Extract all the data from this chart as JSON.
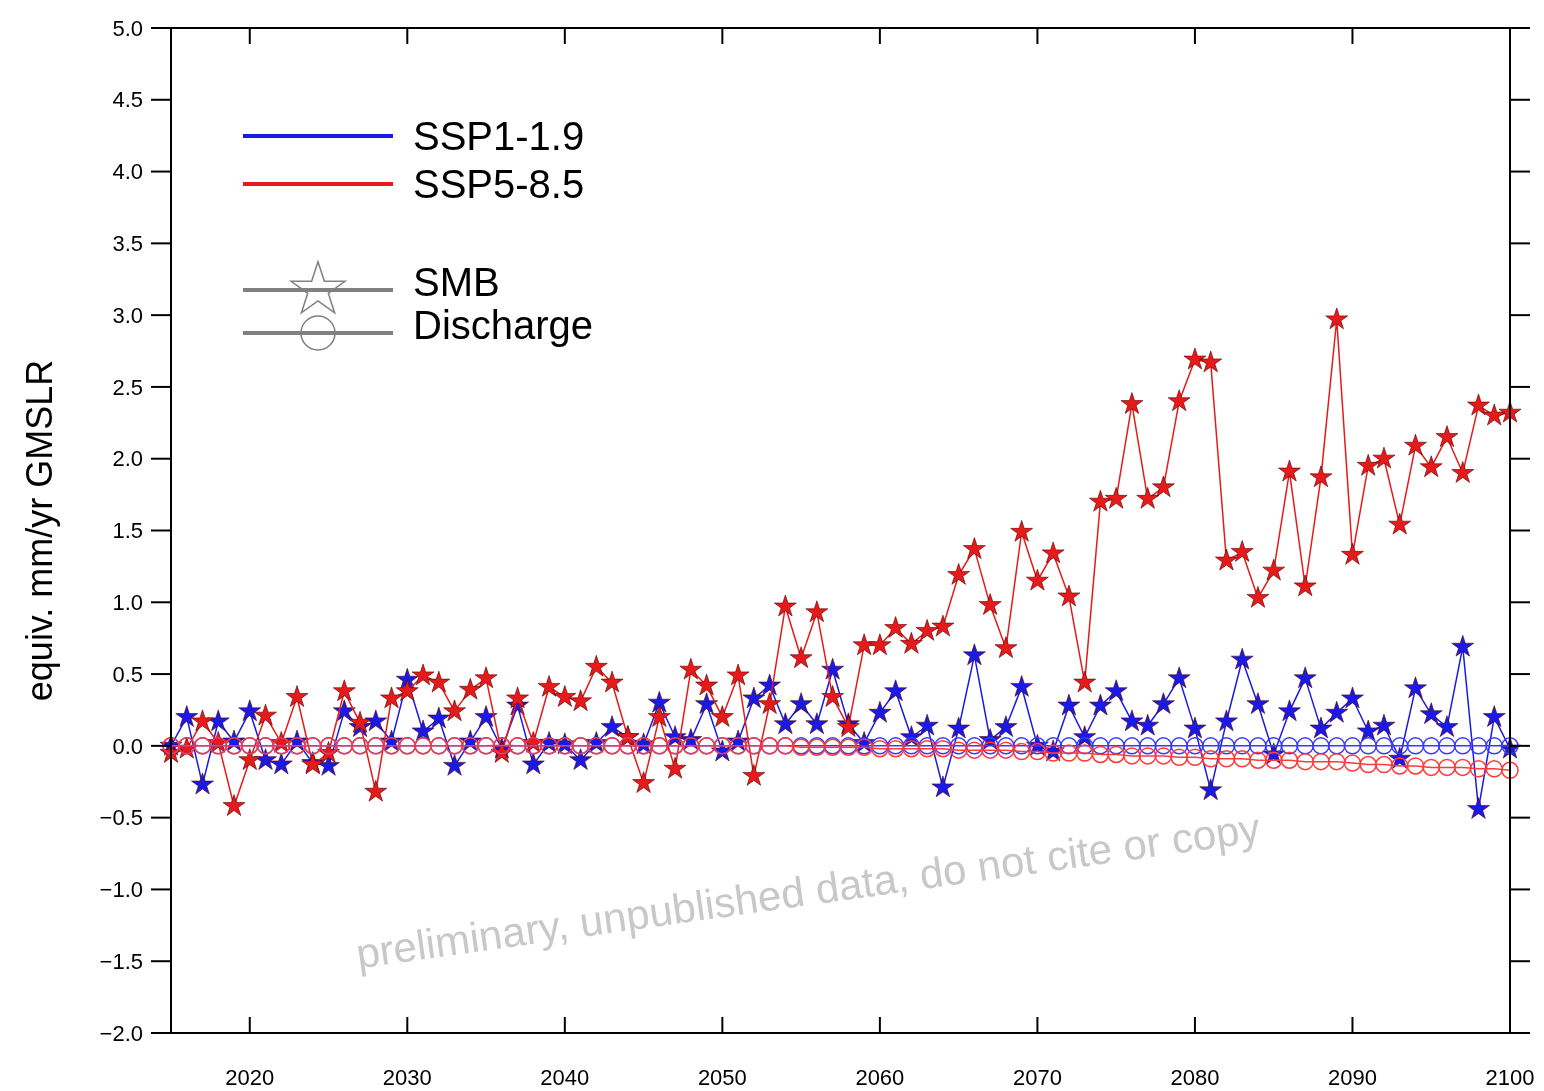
{
  "chart_data": {
    "type": "line",
    "ylabel": "equiv. mm/yr GMSLR",
    "x": [
      2015,
      2016,
      2017,
      2018,
      2019,
      2020,
      2021,
      2022,
      2023,
      2024,
      2025,
      2026,
      2027,
      2028,
      2029,
      2030,
      2031,
      2032,
      2033,
      2034,
      2035,
      2036,
      2037,
      2038,
      2039,
      2040,
      2041,
      2042,
      2043,
      2044,
      2045,
      2046,
      2047,
      2048,
      2049,
      2050,
      2051,
      2052,
      2053,
      2054,
      2055,
      2056,
      2057,
      2058,
      2059,
      2060,
      2061,
      2062,
      2063,
      2064,
      2065,
      2066,
      2067,
      2068,
      2069,
      2070,
      2071,
      2072,
      2073,
      2074,
      2075,
      2076,
      2077,
      2078,
      2079,
      2080,
      2081,
      2082,
      2083,
      2084,
      2085,
      2086,
      2087,
      2088,
      2089,
      2090,
      2091,
      2092,
      2093,
      2094,
      2095,
      2096,
      2097,
      2098,
      2099,
      2100
    ],
    "series": [
      {
        "name": "SSP1-1.9",
        "color": "#1a1ae6",
        "marker": "star",
        "values": [
          0.0,
          0.2,
          -0.27,
          0.17,
          0.03,
          0.24,
          -0.1,
          -0.13,
          0.03,
          -0.12,
          -0.14,
          0.24,
          0.13,
          0.17,
          0.03,
          0.46,
          0.1,
          0.19,
          -0.14,
          0.03,
          0.2,
          -0.02,
          0.28,
          -0.13,
          0.02,
          0.01,
          -0.1,
          0.02,
          0.13,
          0.06,
          0.01,
          0.3,
          0.06,
          0.04,
          0.29,
          -0.04,
          0.03,
          0.33,
          0.42,
          0.15,
          0.29,
          0.15,
          0.53,
          0.15,
          0.02,
          0.23,
          0.38,
          0.06,
          0.14,
          -0.29,
          0.12,
          0.63,
          0.04,
          0.13,
          0.41,
          0.0,
          -0.04,
          0.28,
          0.06,
          0.28,
          0.38,
          0.17,
          0.14,
          0.29,
          0.47,
          0.12,
          -0.31,
          0.17,
          0.6,
          0.29,
          -0.06,
          0.24,
          0.47,
          0.12,
          0.23,
          0.33,
          0.1,
          0.14,
          -0.09,
          0.4,
          0.22,
          0.13,
          0.69,
          -0.44,
          0.2,
          -0.02
        ]
      },
      {
        "name": "SSP5-8.5",
        "color": "#e61a1a",
        "marker": "star",
        "values": [
          -0.05,
          -0.02,
          0.17,
          0.02,
          -0.42,
          -0.1,
          0.21,
          0.02,
          0.34,
          -0.13,
          -0.05,
          0.38,
          0.16,
          -0.32,
          0.33,
          0.38,
          0.49,
          0.44,
          0.24,
          0.39,
          0.47,
          -0.05,
          0.33,
          0.02,
          0.41,
          0.34,
          0.31,
          0.55,
          0.44,
          0.06,
          -0.26,
          0.2,
          -0.16,
          0.53,
          0.42,
          0.2,
          0.49,
          -0.21,
          0.29,
          0.97,
          0.61,
          0.93,
          0.34,
          0.13,
          0.7,
          0.7,
          0.82,
          0.71,
          0.8,
          0.83,
          1.19,
          1.37,
          0.98,
          0.68,
          1.49,
          1.15,
          1.34,
          1.04,
          0.44,
          1.7,
          1.72,
          2.38,
          1.72,
          1.8,
          2.4,
          2.69,
          2.67,
          1.29,
          1.35,
          1.03,
          1.22,
          1.91,
          1.11,
          1.87,
          2.97,
          1.33,
          1.95,
          2.0,
          1.54,
          2.09,
          1.94,
          2.15,
          1.9,
          2.37,
          2.3,
          2.32
        ]
      },
      {
        "color": "#3a3aff",
        "marker": "circle",
        "values": [
          0.0,
          0.0,
          0.0,
          0.0,
          0.0,
          0.0,
          0.0,
          0.0,
          0.0,
          0.0,
          0.0,
          0.0,
          0.0,
          0.0,
          0.0,
          0.0,
          0.0,
          0.0,
          0.0,
          0.0,
          0.0,
          0.0,
          0.0,
          0.0,
          0.0,
          0.0,
          0.0,
          0.0,
          0.0,
          0.0,
          0.0,
          0.0,
          0.0,
          0.0,
          0.0,
          0.0,
          0.0,
          0.0,
          0.0,
          0.0,
          0.0,
          0.0,
          0.0,
          0.0,
          0.0,
          0.0,
          0.0,
          0.0,
          0.0,
          0.0,
          0.0,
          0.0,
          0.0,
          0.0,
          0.0,
          0.0,
          0.0,
          0.0,
          0.0,
          0.0,
          0.0,
          0.0,
          0.0,
          0.0,
          0.0,
          0.0,
          0.0,
          0.0,
          0.0,
          0.0,
          0.0,
          0.0,
          0.0,
          0.0,
          0.0,
          0.0,
          0.0,
          0.0,
          0.0,
          0.0,
          0.0,
          0.0,
          0.0,
          0.0,
          0.0,
          0.0
        ]
      },
      {
        "color": "#ff3a3a",
        "marker": "circle",
        "values": [
          0.0,
          0.0,
          0.0,
          0.0,
          0.0,
          0.0,
          0.0,
          0.0,
          0.0,
          0.0,
          0.0,
          0.0,
          0.0,
          0.0,
          0.0,
          0.0,
          0.0,
          0.0,
          0.0,
          0.0,
          0.0,
          0.0,
          0.0,
          0.0,
          0.0,
          0.0,
          0.0,
          0.0,
          0.0,
          0.0,
          0.0,
          0.0,
          0.0,
          0.0,
          0.0,
          0.0,
          0.0,
          0.0,
          0.0,
          0.0,
          -0.01,
          -0.01,
          -0.01,
          -0.01,
          -0.01,
          -0.02,
          -0.02,
          -0.02,
          -0.02,
          -0.02,
          -0.03,
          -0.03,
          -0.03,
          -0.03,
          -0.04,
          -0.04,
          -0.05,
          -0.05,
          -0.05,
          -0.06,
          -0.06,
          -0.07,
          -0.07,
          -0.07,
          -0.08,
          -0.08,
          -0.09,
          -0.09,
          -0.09,
          -0.1,
          -0.1,
          -0.1,
          -0.11,
          -0.11,
          -0.11,
          -0.12,
          -0.13,
          -0.13,
          -0.14,
          -0.14,
          -0.15,
          -0.15,
          -0.15,
          -0.16,
          -0.16,
          -0.17
        ]
      }
    ],
    "xlim": [
      2015,
      2100
    ],
    "xticks": [
      2020,
      2030,
      2040,
      2050,
      2060,
      2070,
      2080,
      2090,
      2100
    ],
    "ylim": [
      -2,
      5
    ],
    "yticks": [
      {
        "value": -2,
        "label": "−2.0"
      },
      {
        "value": -1.5,
        "label": "−1.5"
      },
      {
        "value": -1,
        "label": "−1.0"
      },
      {
        "value": -0.5,
        "label": "−0.5"
      },
      {
        "value": 0,
        "label": "0.0"
      },
      0.5,
      {
        "value": 1,
        "label": "1.0"
      },
      1.5,
      {
        "value": 2,
        "label": "2.0"
      },
      2.5,
      {
        "value": 3,
        "label": "3.0"
      },
      3.5,
      {
        "value": 4,
        "label": "4.0"
      },
      4.5,
      {
        "value": 5,
        "label": "5.0"
      }
    ],
    "grid": false,
    "legend": "top left",
    "annotations": [
      "SMB",
      "Discharge",
      "preliminary, unpublished data, do not cite or copy"
    ]
  }
}
